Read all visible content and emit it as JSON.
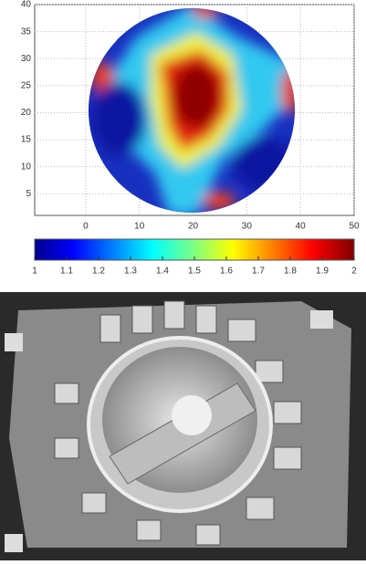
{
  "chart_data": {
    "type": "heatmap",
    "xlim": [
      -9.5,
      50
    ],
    "xticks": [
      0,
      10,
      20,
      30,
      40,
      50
    ],
    "ylim": [
      1,
      40
    ],
    "yticks": [
      5,
      10,
      15,
      20,
      25,
      30,
      35,
      40
    ],
    "grid": true,
    "colorbar": {
      "clim": [
        1,
        2
      ],
      "ticks": [
        1,
        1.1,
        1.2,
        1.3,
        1.4,
        1.5,
        1.6,
        1.7,
        1.8,
        1.9,
        2
      ]
    }
  }
}
